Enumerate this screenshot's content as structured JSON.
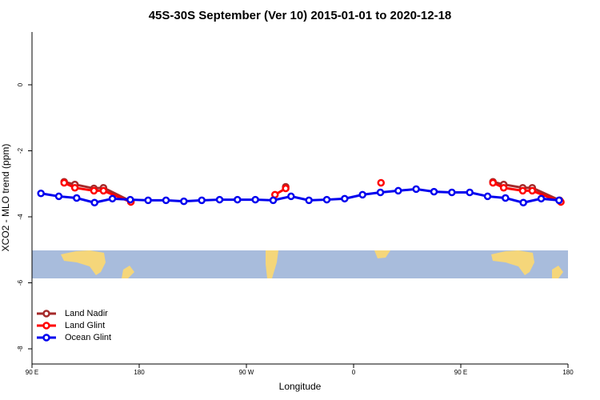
{
  "chart_data": {
    "type": "line",
    "title": "45S-30S September (Ver 10)   2015-01-01 to 2020-12-18",
    "x_label": "Longitude",
    "y_label": "XCO2 - MLO trend (ppm)",
    "xlim": [
      90,
      540
    ],
    "xticks": [
      {
        "value": 90,
        "label": "90 E"
      },
      {
        "value": 180,
        "label": "180"
      },
      {
        "value": 270,
        "label": "90 W"
      },
      {
        "value": 360,
        "label": "0"
      },
      {
        "value": 450,
        "label": "90 E"
      },
      {
        "value": 540,
        "label": "180"
      }
    ],
    "ylim": [
      -8.46,
      1.6
    ],
    "yticks": [
      0,
      -2,
      -4,
      -6,
      -8
    ],
    "legend": "bottom-left",
    "series": [
      {
        "name": "Land Nadir",
        "color": "#a52a2a",
        "x": [
          117,
          126,
          142,
          150,
          173,
          null,
          303,
          null,
          477,
          486,
          502,
          510,
          533
        ],
        "values": [
          -2.94,
          -3.02,
          -3.14,
          -3.12,
          -3.53,
          null,
          -3.09,
          null,
          -2.94,
          -3.02,
          -3.12,
          -3.12,
          -3.5
        ]
      },
      {
        "name": "Land Glint",
        "color": "#ff0000",
        "x": [
          117,
          126,
          142,
          150,
          173,
          null,
          294,
          303,
          null,
          383,
          null,
          477,
          486,
          502,
          510,
          534
        ],
        "values": [
          -2.97,
          -3.12,
          -3.21,
          -3.21,
          -3.55,
          null,
          -3.33,
          -3.14,
          null,
          -2.97,
          null,
          -2.97,
          -3.12,
          -3.21,
          -3.21,
          -3.55
        ]
      },
      {
        "name": "Ocean Glint",
        "color": "#0000ee",
        "x": [
          97.5,
          112.5,
          127.5,
          142.5,
          157.5,
          172.5,
          187.5,
          202.5,
          217.5,
          232.5,
          247.5,
          262.5,
          277.5,
          292.5,
          307.5,
          322.5,
          337.5,
          352.5,
          367.5,
          382.5,
          397.5,
          412.5,
          427.5,
          442.5,
          457.5,
          472.5,
          487.5,
          502.5,
          517.5,
          532.5
        ],
        "values": [
          -3.29,
          -3.38,
          -3.43,
          -3.57,
          -3.45,
          -3.48,
          -3.5,
          -3.5,
          -3.53,
          -3.5,
          -3.48,
          -3.48,
          -3.48,
          -3.5,
          -3.38,
          -3.5,
          -3.48,
          -3.45,
          -3.33,
          -3.26,
          -3.21,
          -3.16,
          -3.24,
          -3.26,
          -3.26,
          -3.38,
          -3.43,
          -3.57,
          -3.45,
          -3.5
        ]
      }
    ]
  }
}
